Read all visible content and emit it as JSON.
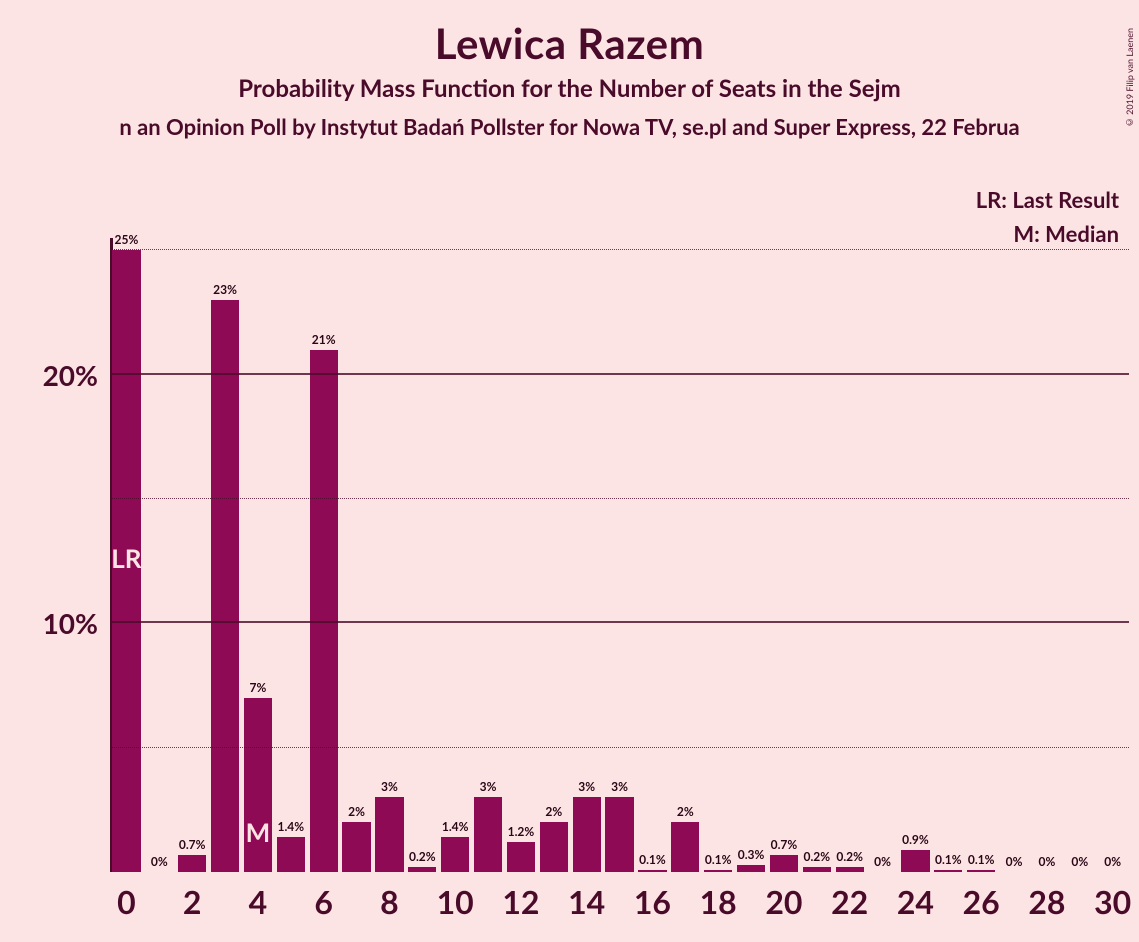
{
  "title": "Lewica Razem",
  "subtitle1": "Probability Mass Function for the Number of Seats in the Sejm",
  "subtitle2": "n an Opinion Poll by Instytut Badań Pollster for Nowa TV, se.pl and Super Express, 22 Februa",
  "legend": {
    "lr": "LR: Last Result",
    "m": "M: Median"
  },
  "copyright": "© 2019 Filip van Laenen",
  "chart": {
    "type": "bar",
    "bar_color": "#8e0a54",
    "background_color": "#fce4e4",
    "axis_color": "#4a0b2a",
    "grid_dotted_color": "#4a0b2a",
    "ylim": [
      0,
      25.5
    ],
    "y_major_ticks": [
      10,
      20
    ],
    "y_minor_ticks": [
      5,
      15,
      25
    ],
    "y_tick_label_suffix": "%",
    "xlim": [
      0,
      30
    ],
    "x_labels": [
      0,
      2,
      4,
      6,
      8,
      10,
      12,
      14,
      16,
      18,
      20,
      22,
      24,
      26,
      28,
      30
    ],
    "bar_width": 0.86,
    "lr_at": 0,
    "median_at": 4,
    "bars": [
      {
        "x": 0,
        "v": 25,
        "label": "25%"
      },
      {
        "x": 1,
        "v": 0,
        "label": "0%"
      },
      {
        "x": 2,
        "v": 0.7,
        "label": "0.7%"
      },
      {
        "x": 3,
        "v": 23,
        "label": "23%"
      },
      {
        "x": 4,
        "v": 7,
        "label": "7%"
      },
      {
        "x": 5,
        "v": 1.4,
        "label": "1.4%"
      },
      {
        "x": 6,
        "v": 21,
        "label": "21%"
      },
      {
        "x": 7,
        "v": 2,
        "label": "2%"
      },
      {
        "x": 8,
        "v": 3,
        "label": "3%"
      },
      {
        "x": 9,
        "v": 0.2,
        "label": "0.2%"
      },
      {
        "x": 10,
        "v": 1.4,
        "label": "1.4%"
      },
      {
        "x": 11,
        "v": 3,
        "label": "3%"
      },
      {
        "x": 12,
        "v": 1.2,
        "label": "1.2%"
      },
      {
        "x": 13,
        "v": 2,
        "label": "2%"
      },
      {
        "x": 14,
        "v": 3,
        "label": "3%"
      },
      {
        "x": 15,
        "v": 3,
        "label": "3%"
      },
      {
        "x": 16,
        "v": 0.1,
        "label": "0.1%"
      },
      {
        "x": 17,
        "v": 2,
        "label": "2%"
      },
      {
        "x": 18,
        "v": 0.1,
        "label": "0.1%"
      },
      {
        "x": 19,
        "v": 0.3,
        "label": "0.3%"
      },
      {
        "x": 20,
        "v": 0.7,
        "label": "0.7%"
      },
      {
        "x": 21,
        "v": 0.2,
        "label": "0.2%"
      },
      {
        "x": 22,
        "v": 0.2,
        "label": "0.2%"
      },
      {
        "x": 23,
        "v": 0,
        "label": "0%"
      },
      {
        "x": 24,
        "v": 0.9,
        "label": "0.9%"
      },
      {
        "x": 25,
        "v": 0.1,
        "label": "0.1%"
      },
      {
        "x": 26,
        "v": 0.1,
        "label": "0.1%"
      },
      {
        "x": 27,
        "v": 0,
        "label": "0%"
      },
      {
        "x": 28,
        "v": 0,
        "label": "0%"
      },
      {
        "x": 29,
        "v": 0,
        "label": "0%"
      },
      {
        "x": 30,
        "v": 0,
        "label": "0%"
      }
    ]
  }
}
